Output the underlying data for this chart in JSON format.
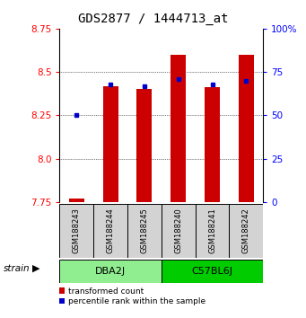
{
  "title": "GDS2877 / 1444713_at",
  "samples": [
    "GSM188243",
    "GSM188244",
    "GSM188245",
    "GSM188240",
    "GSM188241",
    "GSM188242"
  ],
  "groups": [
    {
      "name": "DBA2J",
      "color": "#90EE90",
      "indices": [
        0,
        1,
        2
      ]
    },
    {
      "name": "C57BL6J",
      "color": "#00CC00",
      "indices": [
        3,
        4,
        5
      ]
    }
  ],
  "transformed_counts": [
    7.77,
    8.42,
    8.4,
    8.6,
    8.41,
    8.6
  ],
  "percentile_ranks": [
    50,
    68,
    67,
    71,
    68,
    70
  ],
  "ylim": [
    7.75,
    8.75
  ],
  "yticks": [
    7.75,
    8.0,
    8.25,
    8.5,
    8.75
  ],
  "right_yticks": [
    0,
    25,
    50,
    75,
    100
  ],
  "bar_bottom": 7.75,
  "bar_color_red": "#CC0000",
  "bar_color_blue": "#0000CC",
  "title_fontsize": 10,
  "tick_fontsize": 7.5,
  "legend_red": "transformed count",
  "legend_blue": "percentile rank within the sample",
  "bg_color": "#ffffff",
  "sample_box_color": "#d3d3d3",
  "group_sep_index": 3
}
